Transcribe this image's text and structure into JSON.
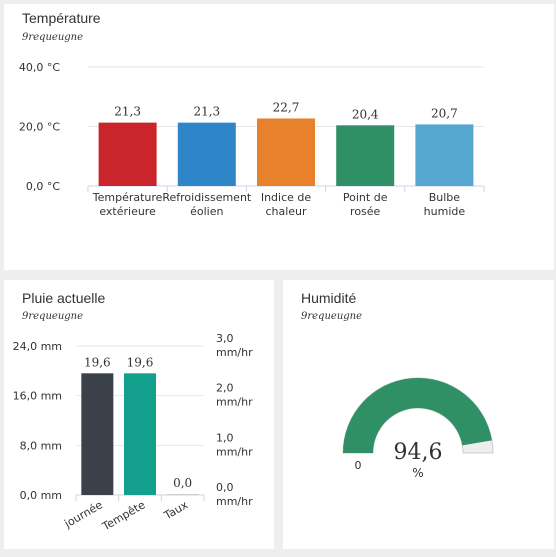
{
  "temperature": {
    "title": "Température",
    "station": "9requeugne",
    "chart_data": {
      "type": "bar",
      "categories": [
        "Température extérieure",
        "Refroidissement éolien",
        "Indice de chaleur",
        "Point de rosée",
        "Bulbe humide"
      ],
      "category_lines": [
        [
          "Température",
          "extérieure"
        ],
        [
          "Refroidissement",
          "éolien"
        ],
        [
          "Indice de",
          "chaleur"
        ],
        [
          "Point de",
          "rosée"
        ],
        [
          "Bulbe",
          "humide"
        ]
      ],
      "values": [
        21.3,
        21.3,
        22.7,
        20.4,
        20.7
      ],
      "value_labels": [
        "21,3",
        "21,3",
        "22,7",
        "20,4",
        "20,7"
      ],
      "colors": [
        "#c9252b",
        "#2e86c8",
        "#e8812c",
        "#2f8f65",
        "#55a7cf"
      ],
      "yticks": [
        0,
        20,
        40
      ],
      "ytick_labels": [
        "0,0 °C",
        "20,0 °C",
        "40,0 °C"
      ],
      "ylim": [
        0,
        40
      ],
      "grid": true
    }
  },
  "rain": {
    "title": "Pluie actuelle",
    "station": "9requeugne",
    "chart_data": {
      "type": "bar",
      "categories": [
        "journée",
        "Tempête",
        "Taux"
      ],
      "values": [
        19.6,
        19.6,
        0.0
      ],
      "value_labels": [
        "19,6",
        "19,6",
        "0,0"
      ],
      "colors": [
        "#3a4149",
        "#13a08d",
        "#cccccc"
      ],
      "yticks": [
        0,
        8,
        16,
        24
      ],
      "ytick_labels": [
        "0,0 mm",
        "8,0 mm",
        "16,0 mm",
        "24,0 mm"
      ],
      "ylim": [
        0,
        24
      ],
      "y2ticks": [
        0,
        1,
        2,
        3
      ],
      "y2tick_lines": [
        [
          "0,0",
          "mm/hr"
        ],
        [
          "1,0",
          "mm/hr"
        ],
        [
          "2,0",
          "mm/hr"
        ],
        [
          "3,0",
          "mm/hr"
        ]
      ],
      "y2lim": [
        0,
        3
      ],
      "grid": true
    }
  },
  "humidity": {
    "title": "Humidité",
    "station": "9requeugne",
    "chart_data": {
      "type": "gauge",
      "value": 94.6,
      "value_label": "94,6",
      "unit": "%",
      "min": 0,
      "min_label": "0",
      "max": 100,
      "color": "#2f8f65",
      "track_color": "#eeeeee"
    }
  }
}
